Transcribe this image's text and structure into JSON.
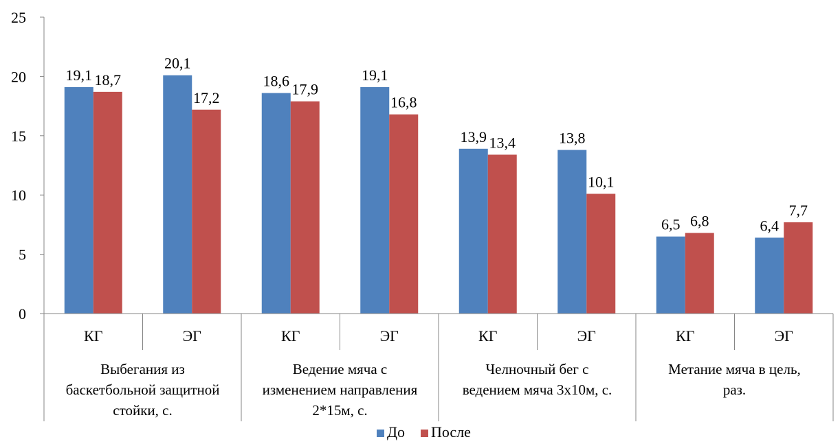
{
  "chart_data": {
    "type": "bar",
    "groups": [
      {
        "label_lines": [
          "Выбегания из",
          "баскетбольной защитной",
          "стойки, с."
        ],
        "categories": [
          "КГ",
          "ЭГ"
        ]
      },
      {
        "label_lines": [
          "Ведение мяча с",
          "изменением  направления",
          "2*15м, с."
        ],
        "categories": [
          "КГ",
          "ЭГ"
        ]
      },
      {
        "label_lines": [
          "Челночный бег с",
          "ведением мяча 3х10м, с."
        ],
        "categories": [
          "КГ",
          "ЭГ"
        ]
      },
      {
        "label_lines": [
          "Метание  мяча в цель,",
          "раз."
        ],
        "categories": [
          "КГ",
          "ЭГ"
        ]
      }
    ],
    "categories": [
      "КГ",
      "ЭГ",
      "КГ",
      "ЭГ",
      "КГ",
      "ЭГ",
      "КГ",
      "ЭГ"
    ],
    "series": [
      {
        "name": "До",
        "color": "#4f81bd",
        "values": [
          19.1,
          20.1,
          18.6,
          19.1,
          13.9,
          13.8,
          6.5,
          6.4
        ],
        "labels": [
          "19,1",
          "20,1",
          "18,6",
          "19,1",
          "13,9",
          "13,8",
          "6,5",
          "6,4"
        ]
      },
      {
        "name": "После",
        "color": "#c0504d",
        "values": [
          18.7,
          17.2,
          17.9,
          16.8,
          13.4,
          10.1,
          6.8,
          7.7
        ],
        "labels": [
          "18,7",
          "17,2",
          "17,9",
          "16,8",
          "13,4",
          "10,1",
          "6,8",
          "7,7"
        ]
      }
    ],
    "ylim": [
      0,
      25
    ],
    "yticks": [
      0,
      5,
      10,
      15,
      20,
      25
    ],
    "legend_position": "bottom",
    "grid": false
  }
}
